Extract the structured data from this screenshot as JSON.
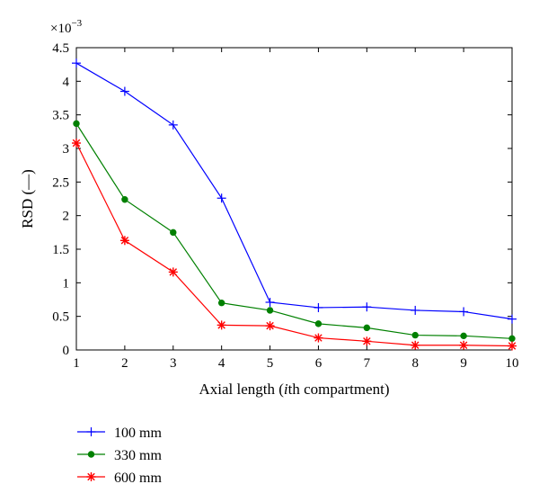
{
  "chart_data": {
    "type": "line",
    "xlabel_parts": [
      "Axial length (",
      "i",
      "th compartment)"
    ],
    "ylabel": "RSD (—)",
    "y_scale_label": "×10",
    "y_scale_exponent": "−3",
    "x": [
      1,
      2,
      3,
      4,
      5,
      6,
      7,
      8,
      9,
      10
    ],
    "x_ticks": [
      "1",
      "2",
      "3",
      "4",
      "5",
      "6",
      "7",
      "8",
      "9",
      "10"
    ],
    "y_ticks": [
      "0",
      "0.5",
      "1",
      "1.5",
      "2",
      "2.5",
      "3",
      "3.5",
      "4",
      "4.5"
    ],
    "xlim": [
      1,
      10
    ],
    "ylim": [
      0,
      4.5
    ],
    "grid": false,
    "legend_position": "below",
    "series": [
      {
        "name": "100 mm",
        "color": "#0000ff",
        "marker": "plus",
        "values": [
          4.27,
          3.85,
          3.35,
          2.26,
          0.71,
          0.63,
          0.64,
          0.59,
          0.57,
          0.46
        ]
      },
      {
        "name": "330 mm",
        "color": "#008000",
        "marker": "dot",
        "values": [
          3.37,
          2.24,
          1.75,
          0.7,
          0.59,
          0.39,
          0.33,
          0.22,
          0.21,
          0.17
        ]
      },
      {
        "name": "600 mm",
        "color": "#ff0000",
        "marker": "star",
        "values": [
          3.08,
          1.63,
          1.16,
          0.37,
          0.36,
          0.18,
          0.13,
          0.07,
          0.07,
          0.06
        ]
      }
    ]
  }
}
